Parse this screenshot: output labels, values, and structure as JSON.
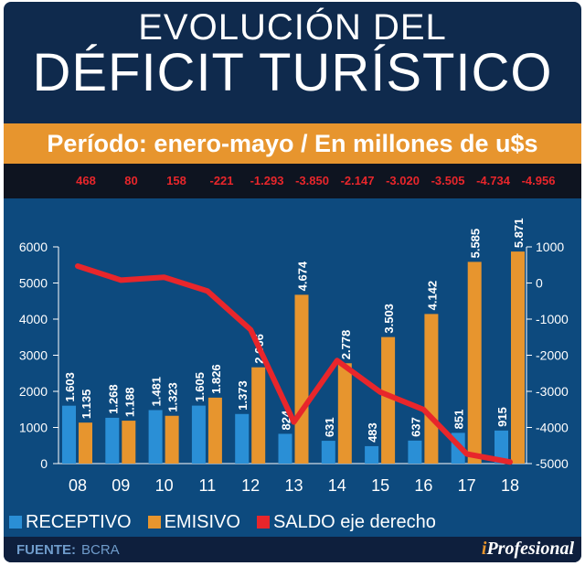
{
  "title_line1": "EVOLUCIÓN DEL",
  "title_line2": "DÉFICIT TURÍSTICO",
  "subtitle": "Período: enero-mayo / En millones de u$s",
  "source_label": "FUENTE:",
  "source_value": "BCRA",
  "logo": {
    "i": "i",
    "rest": "Profesional"
  },
  "colors": {
    "receptivo": "#2a8fd6",
    "emisivo": "#e7952e",
    "saldo": "#e8262b"
  },
  "chart_data": {
    "type": "bar",
    "categories": [
      "08",
      "09",
      "10",
      "11",
      "12",
      "13",
      "14",
      "15",
      "16",
      "17",
      "18"
    ],
    "series": [
      {
        "name": "RECEPTIVO",
        "axis": "left",
        "type": "bar",
        "values": [
          1603,
          1268,
          1481,
          1605,
          1373,
          824,
          631,
          483,
          637,
          851,
          915
        ],
        "labels": [
          "1.603",
          "1.268",
          "1.481",
          "1.605",
          "1.373",
          "824",
          "631",
          "483",
          "637",
          "851",
          "915"
        ]
      },
      {
        "name": "EMISIVO",
        "axis": "left",
        "type": "bar",
        "values": [
          1135,
          1188,
          1323,
          1826,
          2666,
          4674,
          2778,
          3503,
          4142,
          5585,
          5871
        ],
        "labels": [
          "1.135",
          "1.188",
          "1.323",
          "1.826",
          "2.666",
          "4.674",
          "2.778",
          "3.503",
          "4.142",
          "5.585",
          "5.871"
        ]
      },
      {
        "name": "SALDO eje derecho",
        "axis": "right",
        "type": "line",
        "values": [
          468,
          80,
          158,
          -221,
          -1293,
          -3850,
          -2147,
          -3020,
          -3505,
          -4734,
          -4956
        ],
        "labels": [
          "468",
          "80",
          "158",
          "-221",
          "-1.293",
          "-3.850",
          "-2.147",
          "-3.020",
          "-3.505",
          "-4.734",
          "-4.956"
        ]
      }
    ],
    "ylim": [
      0,
      6000
    ],
    "yticks": [
      "0",
      "1000",
      "2000",
      "3000",
      "4000",
      "5000",
      "6000"
    ],
    "y2lim": [
      -5000,
      1000
    ],
    "y2ticks": [
      "-5000",
      "-4000",
      "-3000",
      "-2000",
      "-1000",
      "0",
      "1000"
    ],
    "legend": "bottom-left"
  }
}
